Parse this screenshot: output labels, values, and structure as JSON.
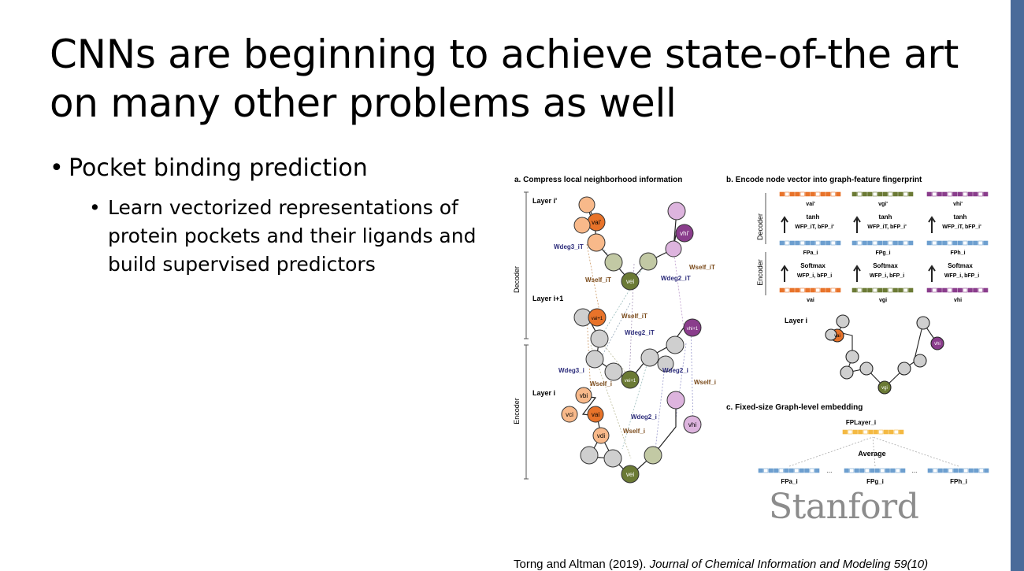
{
  "slide": {
    "title": "CNNs are beginning to achieve state-of-the art on many other problems as well",
    "bullet1": "Pocket binding prediction",
    "bullet2": "Learn vectorized representations of protein pockets and their ligands and build supervised predictors",
    "citation_plain": "Torng and Altman (2019). ",
    "citation_italic": "Journal of Chemical Information and Modeling 59(10)",
    "logo": "Stanford"
  },
  "figure": {
    "panel_a_title": "a. Compress local neighborhood information",
    "panel_b_title": "b. Encode node vector into graph-feature fingerprint",
    "panel_c_title": "c. Fixed-size Graph-level embedding",
    "side_labels": {
      "decoder": "Decoder",
      "encoder": "Encoder"
    },
    "layer_labels": {
      "layer_iprime": "Layer i'",
      "layer_i1": "Layer i+1",
      "layer_i": "Layer i",
      "layer_i_b": "Layer i"
    },
    "node_labels": {
      "vai_prime": "vai'",
      "vhi_prime": "vhi'",
      "vei": "vei",
      "vai1": "vai+1",
      "vhi1": "vhi+1",
      "vbi": "vbi",
      "vci": "vci",
      "vai": "vai",
      "vdi": "vdi",
      "vei_1": "vei+1",
      "vhi": "vhi",
      "vei_bottom": "vei",
      "b_vai": "vai",
      "b_vhi": "vhi",
      "b_vgi": "vgi"
    },
    "weight_labels": {
      "wdeg3_iT": "Wdeg3_iT",
      "wself_iT_1": "Wself_iT",
      "wdeg2_iT_1": "Wdeg2_iT",
      "wself_iT_2": "Wself_iT",
      "wself_iT_3": "Wself_iT",
      "wdeg2_iT_2": "Wdeg2_iT",
      "wdeg3_i": "Wdeg3_i",
      "wself_i_1": "Wself_i",
      "wdeg2_i_1": "Wdeg2_i",
      "wself_i_2": "Wself_i",
      "wdeg2_i_2": "Wdeg2_i",
      "wself_i_3": "Wself_i"
    },
    "panel_b_columns": [
      {
        "top": "vai'",
        "act": "tanh",
        "wtop": "WFP_iT, bFP_i'",
        "fp": "FPa_i",
        "soft": "Softmax",
        "wbot": "WFP_i, bFP_i",
        "bottom": "vai"
      },
      {
        "top": "vgi'",
        "act": "tanh",
        "wtop": "WFP_iT, bFP_i'",
        "fp": "FPg_i",
        "soft": "Softmax",
        "wbot": "WFP_i, bFP_i",
        "bottom": "vgi"
      },
      {
        "top": "vhi'",
        "act": "tanh",
        "wtop": "WFP_iT, bFP_i'",
        "fp": "FPh_i",
        "soft": "Softmax",
        "wbot": "WFP_i, bFP_i",
        "bottom": "vhi"
      }
    ],
    "panel_c": {
      "fp_layer": "FPLayer_i",
      "average": "Average",
      "fps": [
        "FPa_i",
        "FPg_i",
        "FPh_i"
      ],
      "ellipsis": "..."
    },
    "colors": {
      "orange": "#e8732a",
      "light_orange": "#f8b98a",
      "purple": "#8a3d8c",
      "light_purple": "#ddb4de",
      "olive": "#6b7a35",
      "light_olive": "#c2c9a4",
      "gray": "#cfcfcf",
      "blue_bar": "#6d9fcf",
      "gold_bar": "#f4b942"
    }
  }
}
